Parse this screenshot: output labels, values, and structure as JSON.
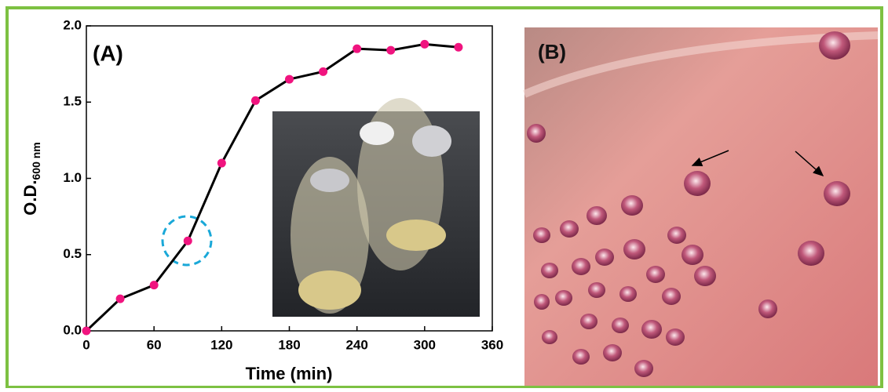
{
  "chart_data": {
    "type": "line",
    "panel_label": "(A)",
    "photo_label": "(B)",
    "xlabel": "Time (min)",
    "ylabel": "O.D.",
    "ylabel_sub": "600 nm",
    "x": [
      0,
      30,
      60,
      90,
      120,
      150,
      180,
      210,
      240,
      270,
      300,
      330
    ],
    "series": [
      {
        "name": "O.D.",
        "color": "#f0147f",
        "values": [
          0,
          0.21,
          0.3,
          0.59,
          1.1,
          1.51,
          1.65,
          1.7,
          1.85,
          1.84,
          1.88,
          1.86
        ]
      }
    ],
    "xlim": [
      0,
      360
    ],
    "xticks": [
      0,
      60,
      120,
      180,
      240,
      300,
      360
    ],
    "ylim": [
      0,
      2
    ],
    "yticks": [
      {
        "value": 0,
        "label": "0.0"
      },
      0.5,
      {
        "value": 1,
        "label": "1.0"
      },
      1.5,
      {
        "value": 2,
        "label": "2.0"
      }
    ]
  }
}
